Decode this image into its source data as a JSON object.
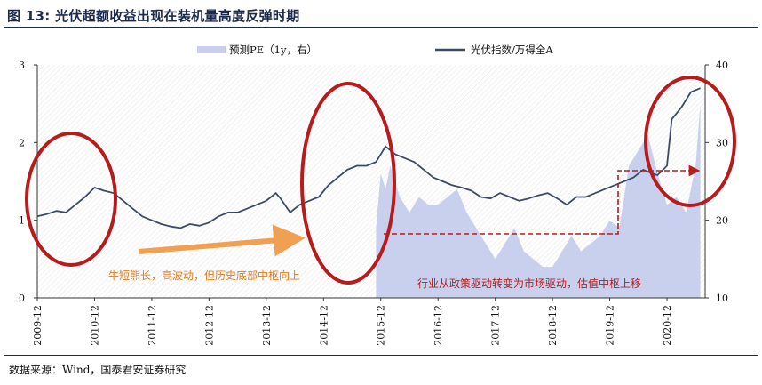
{
  "figure": {
    "title": "图 13:  光伏超额收益出现在装机量高度反弹时期",
    "source": "数据来源：Wind，国泰君安证券研究"
  },
  "colors": {
    "line": "#3c4a66",
    "area": "#c9d0ee",
    "annotation_red": "#b71c1c",
    "arrow_orange": "#f0a050",
    "orange_text": "#e07a20"
  },
  "chart_data": {
    "type": "line",
    "x_ticks": [
      "2009-12",
      "2010-12",
      "2011-12",
      "2012-12",
      "2013-12",
      "2014-12",
      "2015-12",
      "2016-12",
      "2017-12",
      "2018-12",
      "2019-12",
      "2020-12"
    ],
    "y_left": {
      "ticks": [
        "0",
        "1",
        "2",
        "3"
      ],
      "lim": [
        0,
        3
      ]
    },
    "y_right": {
      "ticks": [
        "10",
        "20",
        "30",
        "40"
      ],
      "lim": [
        10,
        40
      ]
    },
    "legend_position": "top",
    "series": [
      {
        "name": "预测PE（1y，右）",
        "kind": "area",
        "axis": "right",
        "x": [
          "2015-11",
          "2015-12",
          "2016-01",
          "2016-02",
          "2016-04",
          "2016-06",
          "2016-08",
          "2016-10",
          "2016-12",
          "2017-02",
          "2017-04",
          "2017-06",
          "2017-08",
          "2017-10",
          "2017-12",
          "2018-02",
          "2018-04",
          "2018-06",
          "2018-08",
          "2018-10",
          "2018-12",
          "2019-02",
          "2019-04",
          "2019-06",
          "2019-08",
          "2019-10",
          "2019-12",
          "2020-02",
          "2020-04",
          "2020-06",
          "2020-08",
          "2020-10",
          "2020-12",
          "2021-02",
          "2021-04",
          "2021-06",
          "2021-07"
        ],
        "values": [
          19,
          26,
          24,
          27,
          23,
          21,
          23,
          22,
          22,
          23,
          24,
          21,
          19,
          17,
          15,
          17,
          19,
          16,
          15,
          14,
          14,
          16,
          18,
          16,
          17,
          18,
          20,
          19,
          27,
          29,
          31,
          26,
          22,
          23,
          21,
          27,
          35
        ]
      },
      {
        "name": "光伏指数/万得全A",
        "kind": "line",
        "axis": "left",
        "x": [
          "2009-12",
          "2010-02",
          "2010-04",
          "2010-06",
          "2010-08",
          "2010-10",
          "2010-12",
          "2011-02",
          "2011-04",
          "2011-06",
          "2011-08",
          "2011-10",
          "2011-12",
          "2012-02",
          "2012-04",
          "2012-06",
          "2012-08",
          "2012-10",
          "2012-12",
          "2013-02",
          "2013-04",
          "2013-06",
          "2013-08",
          "2013-10",
          "2013-12",
          "2014-01",
          "2014-02",
          "2014-03",
          "2014-05",
          "2014-07",
          "2014-09",
          "2014-11",
          "2015-01",
          "2015-03",
          "2015-05",
          "2015-07",
          "2015-09",
          "2015-11",
          "2016-01",
          "2016-03",
          "2016-05",
          "2016-07",
          "2016-09",
          "2016-11",
          "2017-01",
          "2017-03",
          "2017-05",
          "2017-07",
          "2017-09",
          "2017-11",
          "2018-01",
          "2018-03",
          "2018-05",
          "2018-07",
          "2018-09",
          "2018-11",
          "2019-01",
          "2019-03",
          "2019-05",
          "2019-07",
          "2019-09",
          "2019-11",
          "2020-01",
          "2020-03",
          "2020-05",
          "2020-07",
          "2020-09",
          "2020-10",
          "2020-12",
          "2021-01",
          "2021-03",
          "2021-05",
          "2021-07"
        ],
        "values": [
          1.05,
          1.08,
          1.12,
          1.1,
          1.2,
          1.3,
          1.42,
          1.38,
          1.35,
          1.25,
          1.15,
          1.05,
          1.0,
          0.95,
          0.92,
          0.9,
          0.95,
          0.93,
          0.97,
          1.05,
          1.1,
          1.1,
          1.15,
          1.2,
          1.25,
          1.3,
          1.35,
          1.28,
          1.1,
          1.2,
          1.25,
          1.3,
          1.45,
          1.55,
          1.65,
          1.7,
          1.7,
          1.75,
          1.95,
          1.85,
          1.8,
          1.75,
          1.65,
          1.55,
          1.5,
          1.45,
          1.42,
          1.38,
          1.3,
          1.28,
          1.35,
          1.3,
          1.25,
          1.28,
          1.32,
          1.35,
          1.28,
          1.2,
          1.3,
          1.3,
          1.35,
          1.4,
          1.45,
          1.5,
          1.55,
          1.65,
          1.6,
          1.58,
          1.7,
          2.3,
          2.45,
          2.65,
          2.7
        ]
      }
    ],
    "annotations": {
      "left_text": "牛短熊长，高波动，但历史底部中枢向上",
      "right_text": "行业从政策驱动转变为市场驱动，估值中枢上移"
    }
  }
}
